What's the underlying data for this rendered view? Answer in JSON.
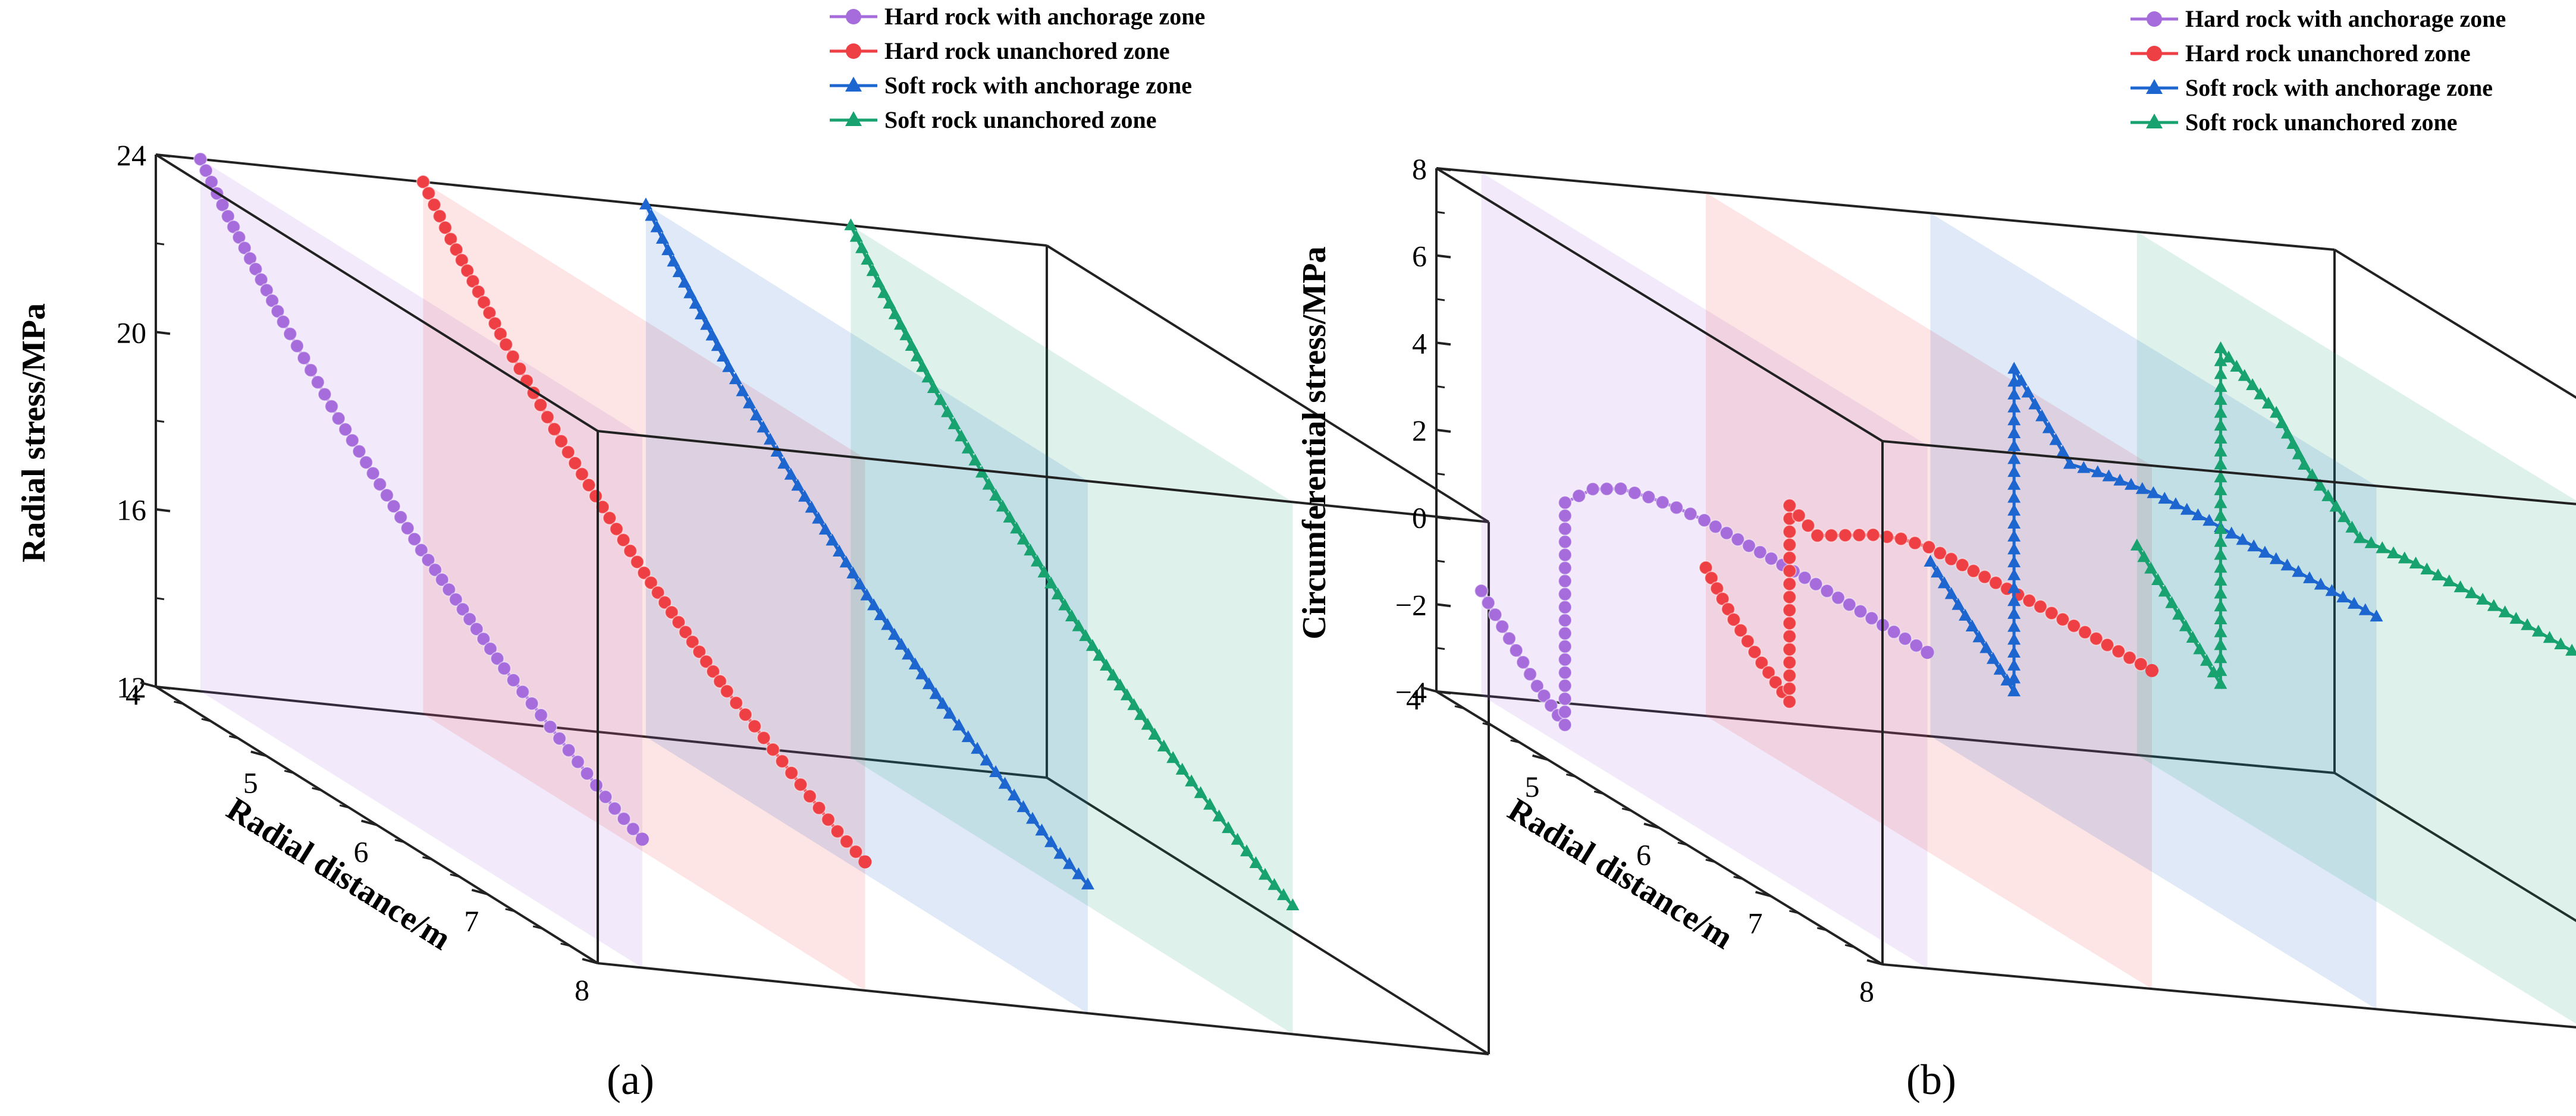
{
  "figure": {
    "series_colors": [
      "#a66cdc",
      "#ee3f45",
      "#1d66d0",
      "#17a26f"
    ],
    "panel_labels": [
      "(a)",
      "(b)"
    ]
  },
  "chart_data": [
    {
      "type": "line3d",
      "panel": "(a)",
      "ylabel": "Radial stress/MPa",
      "xlabel": "Radial distance/m",
      "ylim": [
        12,
        24
      ],
      "xlim": [
        4,
        8
      ],
      "yticks": [
        12,
        16,
        20,
        24
      ],
      "xticks": [
        4,
        5,
        6,
        7,
        8
      ],
      "legend": {
        "position": "top-right"
      },
      "series": [
        {
          "name": "Hard rock with anchorage zone",
          "marker": "sphere",
          "color": "#a66cdc",
          "x": [
            4.0,
            4.25,
            4.5,
            4.75,
            5.0,
            5.25,
            5.5,
            5.75,
            6.0,
            6.25,
            6.5,
            6.75,
            7.0,
            7.25,
            7.5,
            7.75,
            8.0
          ],
          "y": [
            24.0,
            23.1,
            22.3,
            21.5,
            20.8,
            20.1,
            19.5,
            18.9,
            18.3,
            17.8,
            17.3,
            16.8,
            16.4,
            16.0,
            15.6,
            15.2,
            14.9
          ]
        },
        {
          "name": "Hard rock unanchored zone",
          "marker": "sphere",
          "color": "#ee3f45",
          "x": [
            4.0,
            4.25,
            4.5,
            4.75,
            5.0,
            5.25,
            5.5,
            5.75,
            6.0,
            6.25,
            6.5,
            6.75,
            7.0,
            7.25,
            7.5,
            7.75,
            8.0
          ],
          "y": [
            24.0,
            23.1,
            22.3,
            21.5,
            20.8,
            20.1,
            19.5,
            18.9,
            18.3,
            17.8,
            17.3,
            16.8,
            16.4,
            16.0,
            15.6,
            15.2,
            14.9
          ]
        },
        {
          "name": "Soft rock with anchorage zone",
          "marker": "triangle",
          "color": "#1d66d0",
          "x": [
            4.0,
            4.25,
            4.5,
            4.75,
            5.0,
            5.25,
            5.5,
            5.75,
            6.0,
            6.25,
            6.5,
            6.75,
            7.0,
            7.25,
            7.5,
            7.75,
            8.0
          ],
          "y": [
            24.0,
            23.1,
            22.3,
            21.5,
            20.8,
            20.1,
            19.5,
            18.9,
            18.3,
            17.8,
            17.3,
            16.8,
            16.4,
            16.0,
            15.6,
            15.2,
            14.9
          ]
        },
        {
          "name": "Soft rock unanchored zone",
          "marker": "triangle",
          "color": "#17a26f",
          "x": [
            4.0,
            4.25,
            4.5,
            4.75,
            5.0,
            5.25,
            5.5,
            5.75,
            6.0,
            6.25,
            6.5,
            6.75,
            7.0,
            7.25,
            7.5,
            7.75,
            8.0
          ],
          "y": [
            24.0,
            23.1,
            22.3,
            21.5,
            20.8,
            20.1,
            19.5,
            18.9,
            18.3,
            17.8,
            17.3,
            16.8,
            16.4,
            16.0,
            15.6,
            15.2,
            14.9
          ]
        }
      ]
    },
    {
      "type": "line3d",
      "panel": "(b)",
      "ylabel": "Circumferential stress/MPa",
      "xlabel": "Radial distance/m",
      "ylim": [
        -4,
        8
      ],
      "xlim": [
        4,
        8
      ],
      "yticks": [
        -4,
        -2,
        0,
        2,
        4,
        6,
        8
      ],
      "xticks": [
        4,
        5,
        6,
        7,
        8
      ],
      "legend": {
        "position": "top-right"
      },
      "series": [
        {
          "name": "Hard rock with anchorage zone",
          "marker": "sphere",
          "color": "#a66cdc",
          "x": [
            4.0,
            4.25,
            4.5,
            4.75,
            4.751,
            5.0,
            5.25,
            5.5,
            5.75,
            6.0,
            6.5,
            7.0,
            7.5,
            8.0
          ],
          "y": [
            -1.6,
            -2.3,
            -3.0,
            -3.5,
            1.6,
            2.3,
            2.7,
            2.9,
            3.05,
            3.15,
            3.2,
            3.25,
            3.25,
            3.25
          ]
        },
        {
          "name": "Hard rock unanchored zone",
          "marker": "sphere",
          "color": "#ee3f45",
          "x": [
            4.0,
            4.25,
            4.5,
            4.75,
            4.751,
            5.0,
            5.25,
            5.5,
            5.75,
            6.0,
            6.5,
            7.0,
            7.5,
            8.0
          ],
          "y": [
            -0.6,
            -1.4,
            -2.0,
            -2.5,
            2.0,
            1.7,
            2.1,
            2.5,
            2.8,
            3.0,
            3.1,
            3.2,
            3.25,
            3.3
          ]
        },
        {
          "name": "Soft rock with anchorage zone",
          "marker": "triangle",
          "color": "#1d66d0",
          "x": [
            4.0,
            4.75,
            4.751,
            5.25,
            5.5,
            6.0,
            6.5,
            7.0,
            7.5,
            8.0
          ],
          "y": [
            0.0,
            -1.8,
            5.6,
            4.2,
            4.4,
            4.7,
            4.85,
            4.9,
            4.95,
            5.0
          ]
        },
        {
          "name": "Soft rock unanchored zone",
          "marker": "triangle",
          "color": "#17a26f",
          "x": [
            4.0,
            4.75,
            4.751,
            5.25,
            5.5,
            6.0,
            6.5,
            7.0,
            7.5,
            8.0
          ],
          "y": [
            0.8,
            -1.2,
            6.5,
            5.8,
            5.0,
            4.1,
            4.3,
            4.4,
            4.45,
            4.5
          ]
        }
      ]
    }
  ]
}
